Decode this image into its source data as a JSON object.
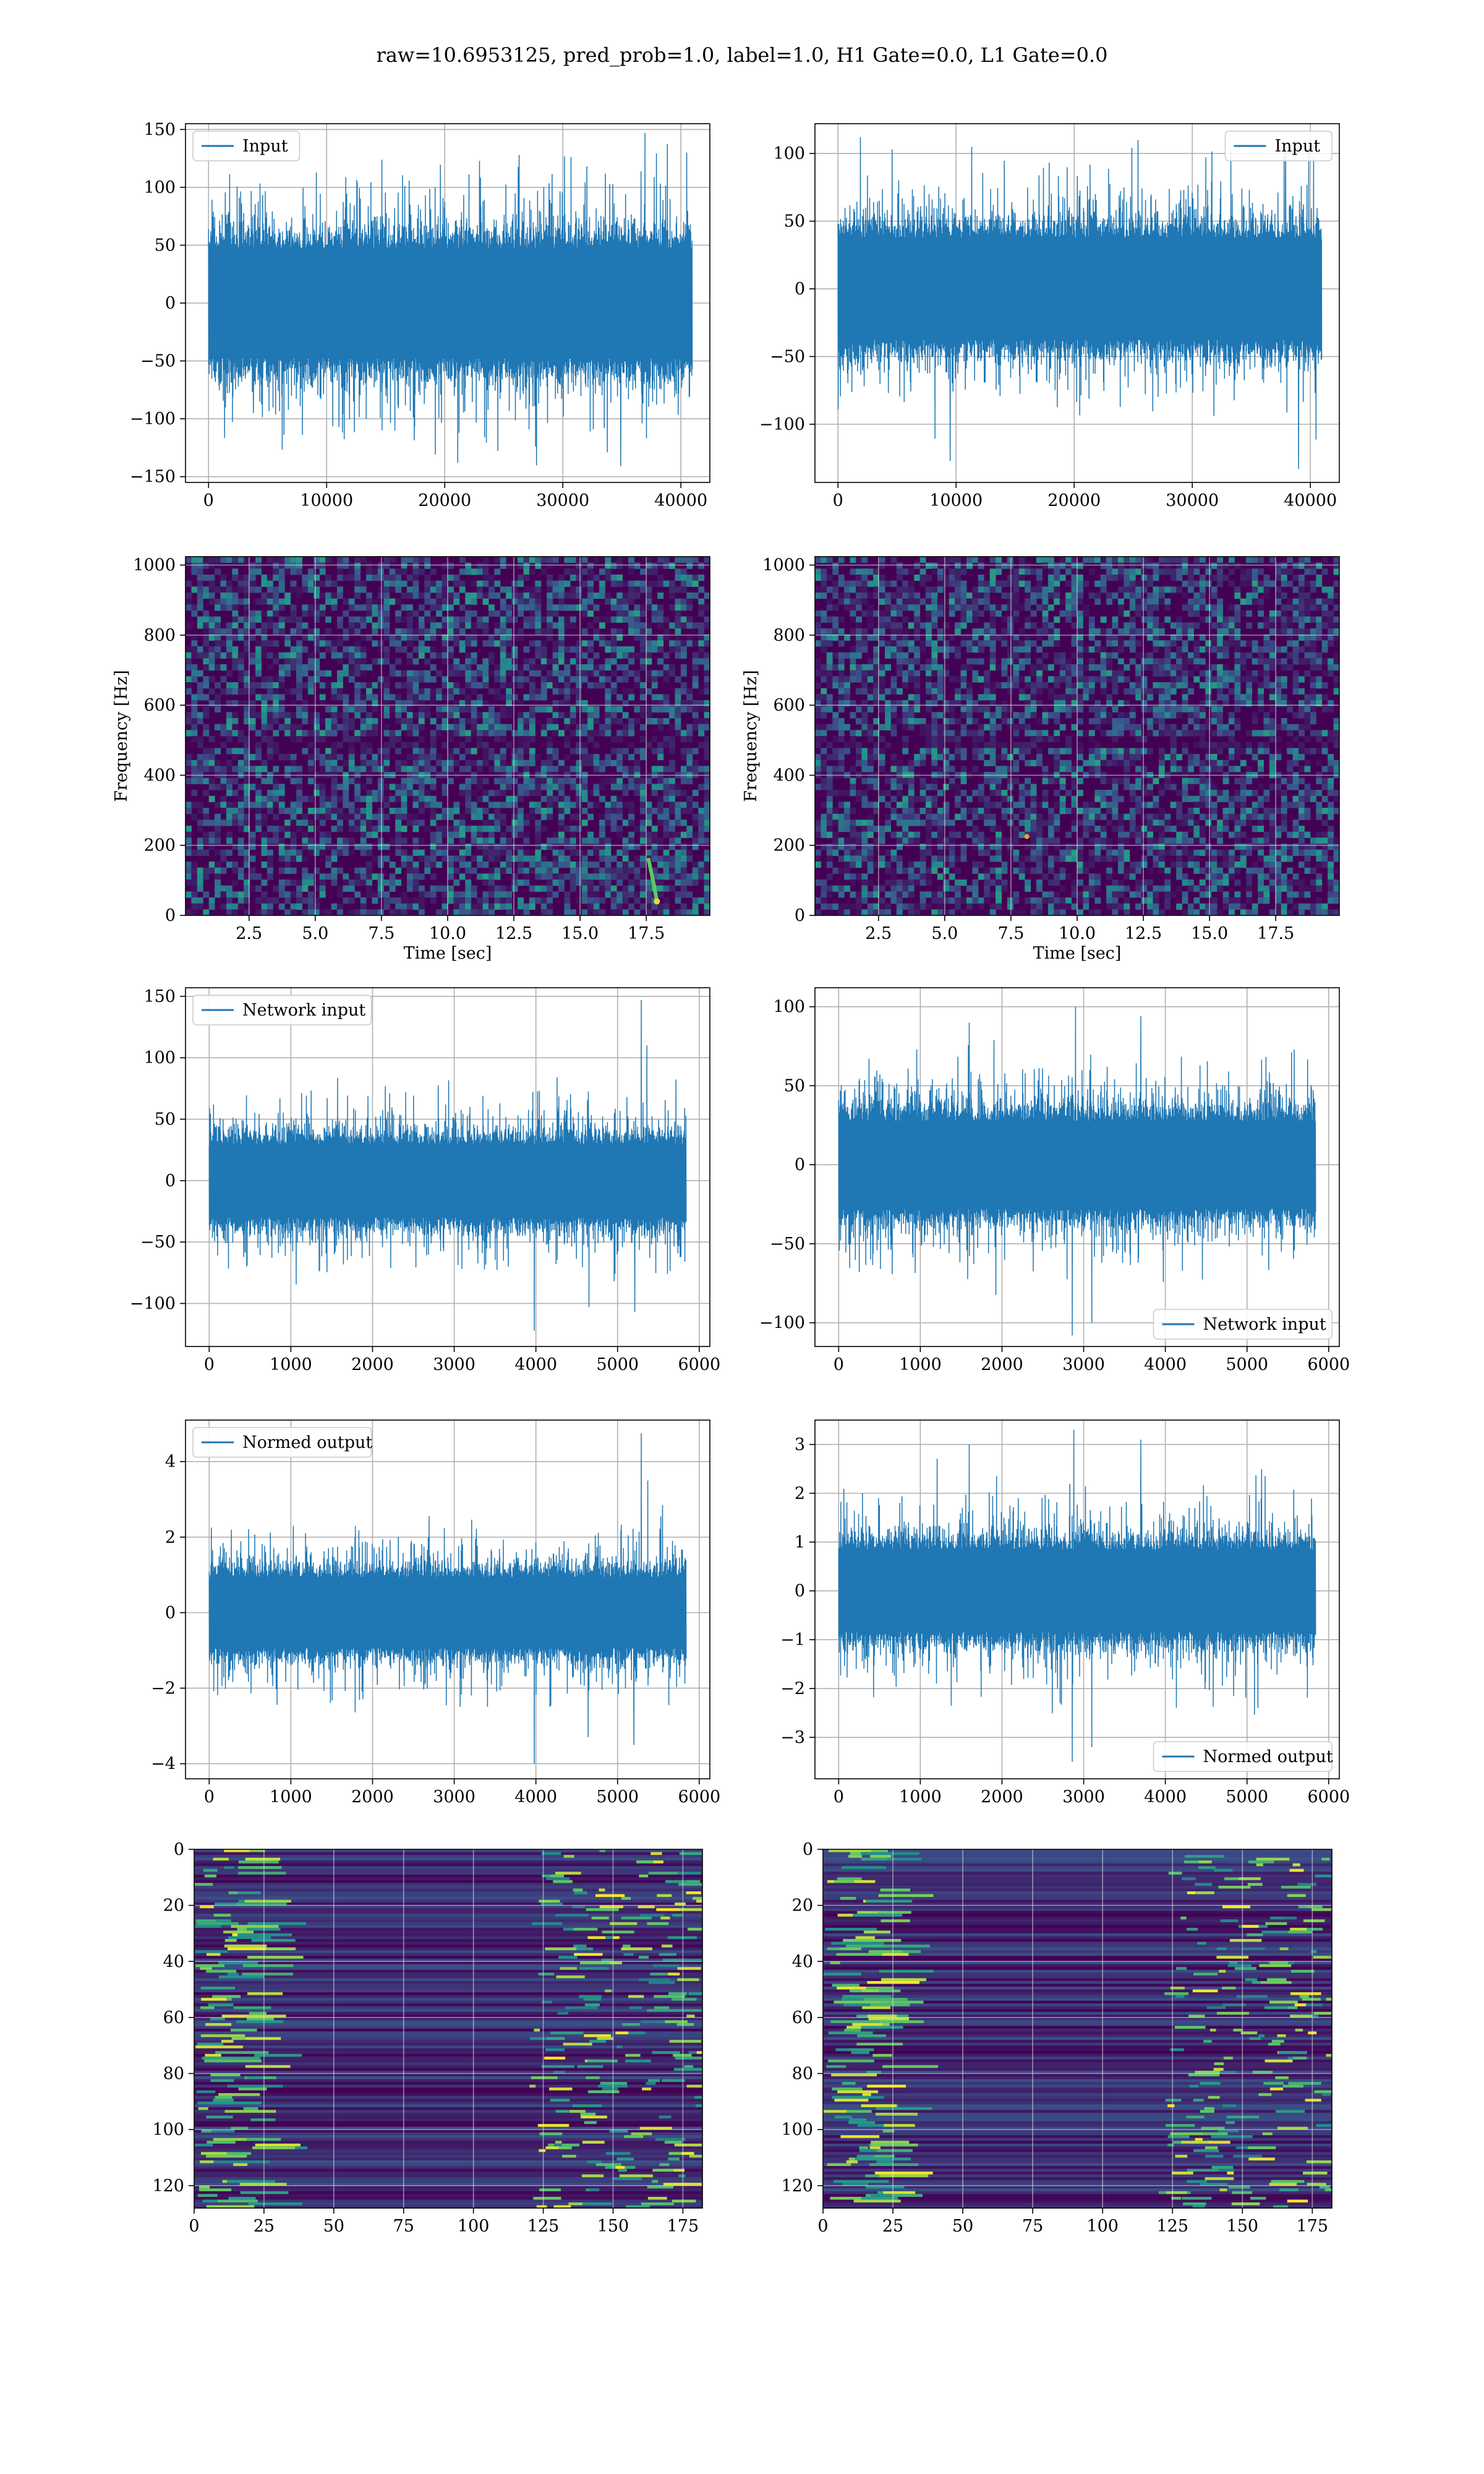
{
  "figure": {
    "title": "raw=10.6953125, pred_prob=1.0, label=1.0, H1 Gate=0.0, L1 Gate=0.0"
  },
  "colors": {
    "line": "#1f77b4",
    "grid": "#b0b0b0",
    "viridis_dark": "#440154",
    "viridis_mid": "#21918c",
    "viridis_bright": "#fde725"
  },
  "chart_data": [
    {
      "id": "input-left",
      "type": "line",
      "title": "",
      "xlabel": "",
      "ylabel": "",
      "xlim": [
        -1950,
        42450
      ],
      "ylim": [
        -155,
        155
      ],
      "xticks": [
        0,
        10000,
        20000,
        30000,
        40000
      ],
      "yticks": [
        -150,
        -100,
        -50,
        0,
        50,
        100,
        150
      ],
      "grid": true,
      "legend_position": "upper-left",
      "series": [
        {
          "name": "Input",
          "x_range": [
            0,
            40960
          ],
          "body": [
            -48,
            48
          ],
          "peak_max": 147,
          "peak_min": -141,
          "spikes": [
            [
              34900,
              -141
            ],
            [
              36950,
              147
            ],
            [
              40500,
              130
            ],
            [
              3800,
              -95
            ],
            [
              11050,
              -107
            ],
            [
              26300,
              128
            ]
          ]
        }
      ]
    },
    {
      "id": "input-right",
      "type": "line",
      "title": "",
      "xlabel": "",
      "ylabel": "",
      "xlim": [
        -1950,
        42450
      ],
      "ylim": [
        -143,
        122
      ],
      "xticks": [
        0,
        10000,
        20000,
        30000,
        40000
      ],
      "yticks": [
        -100,
        -50,
        0,
        50,
        100
      ],
      "grid": true,
      "legend_position": "upper-right",
      "series": [
        {
          "name": "Input",
          "x_range": [
            0,
            40960
          ],
          "body": [
            -38,
            38
          ],
          "peak_max": 113,
          "peak_min": -133,
          "spikes": [
            [
              39000,
              -133
            ],
            [
              1900,
              112
            ],
            [
              9500,
              -127
            ],
            [
              25400,
              110
            ],
            [
              37900,
              105
            ]
          ]
        }
      ]
    },
    {
      "id": "spectrogram-left",
      "type": "heatmap",
      "title": "",
      "xlabel": "Time [sec]",
      "ylabel": "Frequency [Hz]",
      "xlim": [
        0.1,
        19.9
      ],
      "ylim": [
        0,
        1024
      ],
      "xticks": [
        2.5,
        5.0,
        7.5,
        10.0,
        12.5,
        15.0,
        17.5
      ],
      "yticks": [
        0,
        200,
        400,
        600,
        800,
        1000
      ],
      "grid": true,
      "colormap": "viridis",
      "features": {
        "dark_band_hz": [
          470,
          510
        ],
        "chirp_end_sec": 17.9,
        "chirp_end_hz": 40
      }
    },
    {
      "id": "spectrogram-right",
      "type": "heatmap",
      "title": "",
      "xlabel": "Time [sec]",
      "ylabel": "Frequency [Hz]",
      "xlim": [
        0.1,
        19.9
      ],
      "ylim": [
        0,
        1024
      ],
      "xticks": [
        2.5,
        5.0,
        7.5,
        10.0,
        12.5,
        15.0,
        17.5
      ],
      "yticks": [
        0,
        200,
        400,
        600,
        800,
        1000
      ],
      "grid": true,
      "colormap": "viridis",
      "features": {
        "dark_band_hz": [
          470,
          510
        ],
        "bright_spot_sec": 8.1,
        "bright_spot_hz": 225
      }
    },
    {
      "id": "network-input-left",
      "type": "line",
      "title": "",
      "xlabel": "",
      "ylabel": "",
      "xlim": [
        -290,
        6130
      ],
      "ylim": [
        -135,
        157
      ],
      "xticks": [
        0,
        1000,
        2000,
        3000,
        4000,
        5000,
        6000
      ],
      "yticks": [
        -100,
        -50,
        0,
        50,
        100,
        150
      ],
      "grid": true,
      "legend_position": "upper-left",
      "series": [
        {
          "name": "Network input",
          "x_range": [
            0,
            5840
          ],
          "body": [
            -30,
            30
          ],
          "peak_max": 147,
          "peak_min": -122,
          "spikes": [
            [
              3980,
              -122
            ],
            [
              5290,
              147
            ],
            [
              5210,
              -107
            ],
            [
              4650,
              -103
            ],
            [
              5360,
              110
            ]
          ]
        }
      ]
    },
    {
      "id": "network-input-right",
      "type": "line",
      "title": "",
      "xlabel": "",
      "ylabel": "",
      "xlim": [
        -290,
        6130
      ],
      "ylim": [
        -115,
        112
      ],
      "xticks": [
        0,
        1000,
        2000,
        3000,
        4000,
        5000,
        6000
      ],
      "yticks": [
        -100,
        -50,
        0,
        50,
        100
      ],
      "grid": true,
      "legend_position": "lower-right",
      "series": [
        {
          "name": "Network input",
          "x_range": [
            0,
            5840
          ],
          "body": [
            -28,
            28
          ],
          "peak_max": 100,
          "peak_min": -108,
          "spikes": [
            [
              2860,
              -108
            ],
            [
              2900,
              100
            ],
            [
              3700,
              94
            ],
            [
              3100,
              -100
            ],
            [
              1600,
              90
            ]
          ]
        }
      ]
    },
    {
      "id": "normed-output-left",
      "type": "line",
      "title": "",
      "xlabel": "",
      "ylabel": "",
      "xlim": [
        -290,
        6130
      ],
      "ylim": [
        -4.4,
        5.1
      ],
      "xticks": [
        0,
        1000,
        2000,
        3000,
        4000,
        5000,
        6000
      ],
      "yticks": [
        -4,
        -2,
        0,
        2,
        4
      ],
      "grid": true,
      "legend_position": "upper-left",
      "series": [
        {
          "name": "Normed output",
          "x_range": [
            0,
            5840
          ],
          "body": [
            -0.95,
            0.95
          ],
          "peak_max": 4.75,
          "peak_min": -4.0,
          "spikes": [
            [
              3980,
              -4.0
            ],
            [
              5290,
              4.75
            ],
            [
              5200,
              -3.5
            ],
            [
              4640,
              -3.3
            ],
            [
              5370,
              3.5
            ]
          ]
        }
      ]
    },
    {
      "id": "normed-output-right",
      "type": "line",
      "title": "",
      "xlabel": "",
      "ylabel": "",
      "xlim": [
        -290,
        6130
      ],
      "ylim": [
        -3.85,
        3.5
      ],
      "xticks": [
        0,
        1000,
        2000,
        3000,
        4000,
        5000,
        6000
      ],
      "yticks": [
        -3,
        -2,
        -1,
        0,
        1,
        2,
        3
      ],
      "grid": true,
      "legend_position": "lower-right",
      "series": [
        {
          "name": "Normed output",
          "x_range": [
            0,
            5840
          ],
          "body": [
            -0.85,
            0.85
          ],
          "peak_max": 3.3,
          "peak_min": -3.5,
          "spikes": [
            [
              2860,
              -3.5
            ],
            [
              2880,
              3.3
            ],
            [
              3700,
              3.1
            ],
            [
              3100,
              -3.2
            ],
            [
              1600,
              3.0
            ]
          ]
        }
      ]
    },
    {
      "id": "feature-map-left",
      "type": "heatmap",
      "title": "",
      "xlabel": "",
      "ylabel": "",
      "xlim": [
        0,
        182
      ],
      "ylim": [
        128,
        0
      ],
      "xticks": [
        0,
        25,
        50,
        75,
        100,
        125,
        150,
        175
      ],
      "yticks": [
        0,
        20,
        40,
        60,
        80,
        100,
        120
      ],
      "grid": true,
      "colormap": "viridis",
      "features": {
        "bright_edges": "left-and-right"
      }
    },
    {
      "id": "feature-map-right",
      "type": "heatmap",
      "title": "",
      "xlabel": "",
      "ylabel": "",
      "xlim": [
        0,
        182
      ],
      "ylim": [
        128,
        0
      ],
      "xticks": [
        0,
        25,
        50,
        75,
        100,
        125,
        150,
        175
      ],
      "yticks": [
        0,
        20,
        40,
        60,
        80,
        100,
        120
      ],
      "grid": true,
      "colormap": "viridis",
      "features": {
        "bright_edges": "left-and-right"
      }
    }
  ]
}
